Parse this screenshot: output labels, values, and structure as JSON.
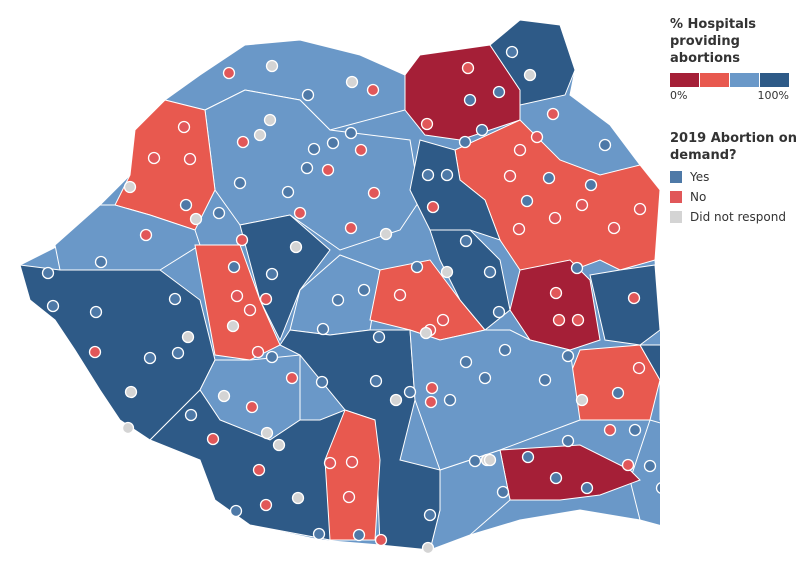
{
  "legend_scale": {
    "title": "% Hospitals providing abortions",
    "colors": [
      "#a51f37",
      "#e8594f",
      "#6a98c8",
      "#2e5a87"
    ],
    "min_label": "0%",
    "max_label": "100%"
  },
  "legend_response": {
    "title": "2019 Abortion on demand?",
    "items": [
      {
        "label": "Yes",
        "color": "#4e79a7"
      },
      {
        "label": "No",
        "color": "#e15759"
      },
      {
        "label": "Did not respond",
        "color": "#d4d4d4"
      }
    ]
  }
}
